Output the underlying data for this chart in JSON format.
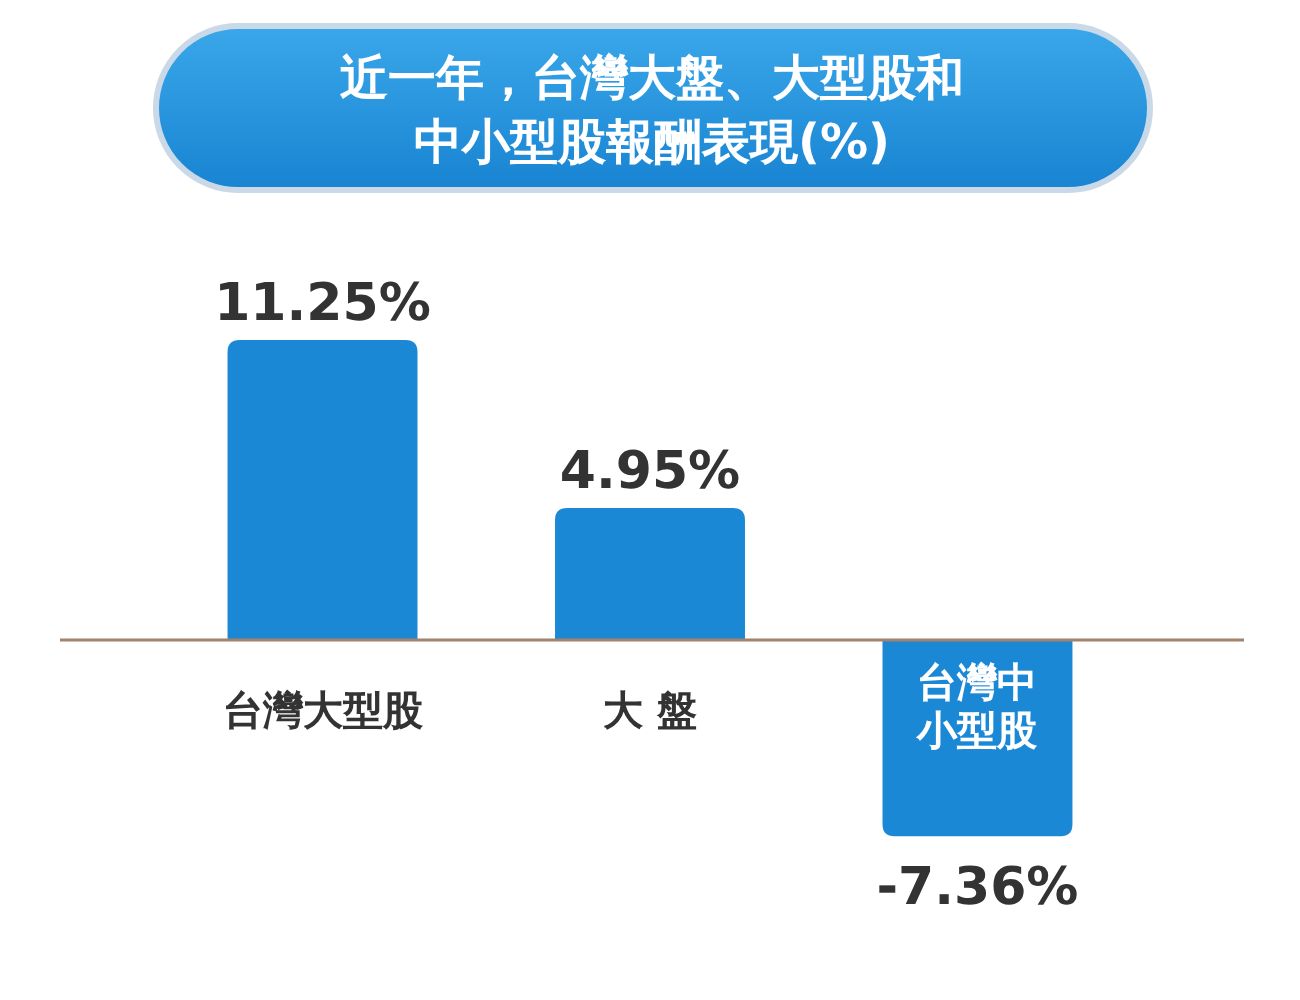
{
  "chart_data": {
    "type": "bar",
    "title": "近一年，台灣大盤、大型股和中小型股報酬表現(%)",
    "categories": [
      "台灣大型股",
      "大 盤",
      "台灣中小型股"
    ],
    "values": [
      11.25,
      4.95,
      -7.36
    ],
    "value_labels": [
      "11.25%",
      "4.95%",
      "-7.36%"
    ],
    "color": "#1b88d6"
  }
}
